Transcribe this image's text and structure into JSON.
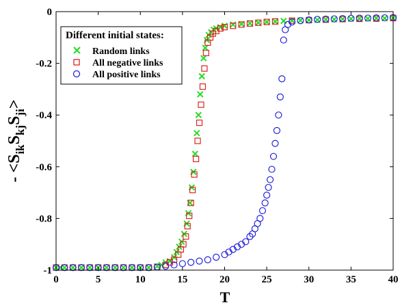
{
  "chart_data": {
    "type": "scatter",
    "xlabel": "T",
    "ylabel": {
      "prefix": "- <S",
      "parts": [
        [
          "ik",
          "S"
        ],
        [
          "kj",
          "S"
        ],
        [
          "ji",
          ">"
        ]
      ]
    },
    "xlim": [
      0,
      40
    ],
    "ylim": [
      -1,
      0
    ],
    "xticks": [
      0,
      5,
      10,
      15,
      20,
      25,
      30,
      35,
      40
    ],
    "yticks": [
      0,
      -0.2,
      -0.4,
      -0.6,
      -0.8,
      -1
    ],
    "ytick_labels": [
      "0",
      "-0.2",
      "-0.4",
      "-0.6",
      "-0.8",
      "-1"
    ],
    "grid": false,
    "legend": {
      "title": "Different initial states:",
      "placement": "top-left",
      "entries": [
        "Random links",
        "All negative links",
        "All positive links"
      ]
    },
    "series": [
      {
        "name": "Random links",
        "marker": "x",
        "color": "#22dd22",
        "x": [
          0,
          0.5,
          1,
          2,
          3,
          4,
          5,
          6,
          7,
          8,
          9,
          10,
          11,
          12,
          12.5,
          13,
          13.5,
          14,
          14.3,
          14.6,
          14.9,
          15.2,
          15.5,
          15.7,
          15.9,
          16.1,
          16.3,
          16.5,
          16.7,
          16.9,
          17.1,
          17.3,
          17.5,
          17.7,
          17.9,
          18.1,
          18.4,
          18.7,
          19,
          19.5,
          20,
          21,
          22,
          23,
          24,
          25,
          26,
          27,
          28,
          29,
          30,
          31,
          32,
          33,
          34,
          35,
          36,
          37,
          38,
          39,
          40
        ],
        "y": [
          -0.99,
          -0.99,
          -0.99,
          -0.99,
          -0.99,
          -0.99,
          -0.99,
          -0.99,
          -0.99,
          -0.99,
          -0.99,
          -0.99,
          -0.99,
          -0.985,
          -0.98,
          -0.97,
          -0.965,
          -0.95,
          -0.93,
          -0.91,
          -0.89,
          -0.86,
          -0.82,
          -0.78,
          -0.74,
          -0.68,
          -0.62,
          -0.55,
          -0.47,
          -0.4,
          -0.32,
          -0.25,
          -0.18,
          -0.14,
          -0.11,
          -0.09,
          -0.08,
          -0.07,
          -0.065,
          -0.06,
          -0.055,
          -0.05,
          -0.048,
          -0.045,
          -0.043,
          -0.04,
          -0.038,
          -0.036,
          -0.035,
          -0.034,
          -0.033,
          -0.032,
          -0.031,
          -0.03,
          -0.029,
          -0.028,
          -0.027,
          -0.027,
          -0.026,
          -0.026,
          -0.025
        ]
      },
      {
        "name": "All negative links",
        "marker": "square",
        "color": "#dd2222",
        "x": [
          0,
          1,
          2,
          3,
          4,
          5,
          6,
          7,
          8,
          9,
          10,
          11,
          12,
          13,
          13.5,
          14,
          14.5,
          14.8,
          15.1,
          15.4,
          15.6,
          15.8,
          16,
          16.2,
          16.4,
          16.6,
          16.8,
          17,
          17.2,
          17.4,
          17.6,
          17.8,
          18,
          18.3,
          18.6,
          19,
          19.5,
          20,
          21,
          22,
          23,
          24,
          25,
          26,
          28,
          30,
          32,
          34,
          36,
          38,
          40
        ],
        "y": [
          -0.99,
          -0.99,
          -0.99,
          -0.99,
          -0.99,
          -0.99,
          -0.99,
          -0.99,
          -0.99,
          -0.99,
          -0.99,
          -0.99,
          -0.988,
          -0.98,
          -0.97,
          -0.96,
          -0.94,
          -0.92,
          -0.9,
          -0.87,
          -0.83,
          -0.79,
          -0.74,
          -0.69,
          -0.63,
          -0.57,
          -0.5,
          -0.43,
          -0.36,
          -0.29,
          -0.22,
          -0.16,
          -0.12,
          -0.1,
          -0.085,
          -0.075,
          -0.065,
          -0.06,
          -0.055,
          -0.05,
          -0.046,
          -0.043,
          -0.04,
          -0.038,
          -0.035,
          -0.033,
          -0.031,
          -0.029,
          -0.028,
          -0.027,
          -0.025
        ]
      },
      {
        "name": "All positive links",
        "marker": "circle",
        "color": "#2222dd",
        "x": [
          0,
          1,
          2,
          3,
          4,
          5,
          6,
          7,
          8,
          9,
          10,
          11,
          12,
          13,
          14,
          15,
          16,
          17,
          18,
          19,
          20,
          20.5,
          21,
          21.5,
          22,
          22.5,
          23,
          23.3,
          23.6,
          23.9,
          24.2,
          24.5,
          24.8,
          25,
          25.2,
          25.4,
          25.6,
          25.8,
          26,
          26.2,
          26.4,
          26.6,
          26.8,
          27,
          27.2,
          27.5,
          28,
          29,
          30,
          31,
          32,
          33,
          34,
          35,
          36,
          37,
          38,
          39,
          40
        ],
        "y": [
          -0.99,
          -0.99,
          -0.99,
          -0.99,
          -0.99,
          -0.99,
          -0.99,
          -0.99,
          -0.99,
          -0.99,
          -0.99,
          -0.99,
          -0.988,
          -0.985,
          -0.98,
          -0.975,
          -0.97,
          -0.965,
          -0.96,
          -0.95,
          -0.94,
          -0.93,
          -0.92,
          -0.91,
          -0.9,
          -0.89,
          -0.87,
          -0.86,
          -0.84,
          -0.82,
          -0.8,
          -0.77,
          -0.74,
          -0.71,
          -0.68,
          -0.65,
          -0.61,
          -0.56,
          -0.51,
          -0.46,
          -0.4,
          -0.33,
          -0.26,
          -0.11,
          -0.07,
          -0.05,
          -0.04,
          -0.035,
          -0.032,
          -0.03,
          -0.029,
          -0.028,
          -0.027,
          -0.026,
          -0.025,
          -0.025,
          -0.024,
          -0.024,
          -0.023
        ]
      }
    ]
  }
}
